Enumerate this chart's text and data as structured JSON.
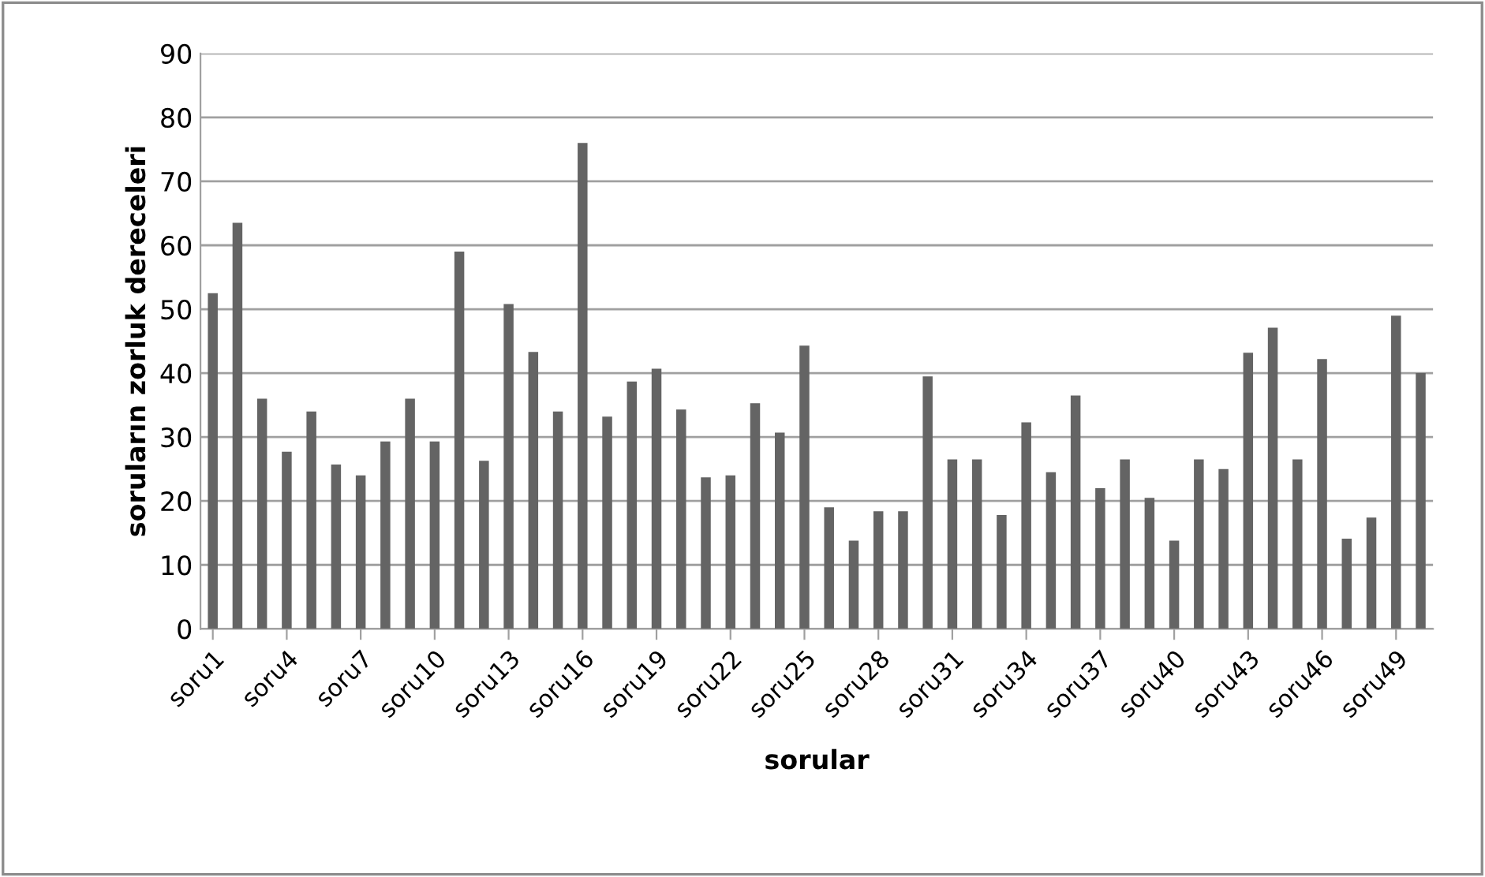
{
  "chart_data": {
    "type": "bar",
    "xlabel": "sorular",
    "ylabel": "soruların zorluk dereceleri",
    "categories": [
      "soru1",
      null,
      null,
      "soru4",
      null,
      null,
      "soru7",
      null,
      null,
      "soru10",
      null,
      null,
      "soru13",
      null,
      null,
      "soru16",
      null,
      null,
      "soru19",
      null,
      null,
      "soru22",
      null,
      null,
      "soru25",
      null,
      null,
      "soru28",
      null,
      null,
      "soru31",
      null,
      null,
      "soru34",
      null,
      null,
      "soru37",
      null,
      null,
      "soru40",
      null,
      null,
      "soru43",
      null,
      null,
      "soru46",
      null,
      null,
      "soru49",
      null
    ],
    "values": [
      52.5,
      63.5,
      36,
      27.7,
      34,
      25.7,
      24,
      29.3,
      36,
      29.3,
      59,
      26.3,
      50.8,
      43.3,
      34,
      76,
      33.2,
      38.7,
      40.7,
      34.3,
      23.7,
      24,
      35.3,
      30.7,
      44.3,
      19,
      13.8,
      18.4,
      18.4,
      39.5,
      26.5,
      26.5,
      17.8,
      32.3,
      24.5,
      36.5,
      22,
      26.5,
      20.5,
      13.8,
      26.5,
      25,
      43.2,
      47.1,
      26.5,
      42.2,
      14.1,
      17.4,
      49,
      40
    ],
    "color": "#646464",
    "ylim": [
      0,
      90
    ],
    "yticks": [
      0,
      10,
      20,
      30,
      40,
      50,
      60,
      70,
      80,
      90
    ],
    "grid": "y"
  }
}
